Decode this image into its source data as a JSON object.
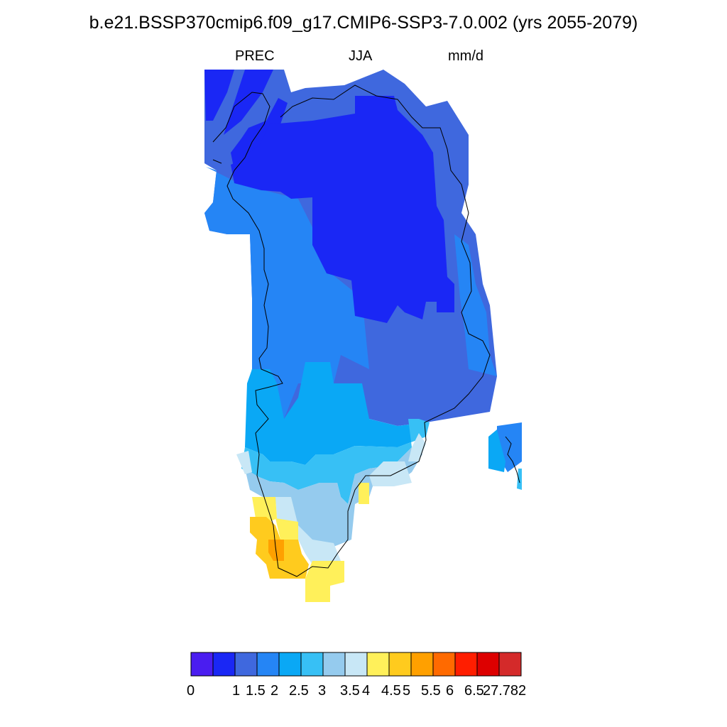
{
  "header": {
    "title": "b.e21.BSSP370cmip6.f09_g17.CMIP6-SSP3-7.0.002 (yrs 2055-2079)",
    "variable": "PREC",
    "season": "JJA",
    "units": "mm/d"
  },
  "colorbar": {
    "colors": [
      "#4a1df0",
      "#1a27f5",
      "#3f68de",
      "#2585f5",
      "#0aa8f5",
      "#37c0f5",
      "#95cbee",
      "#c8e7f6",
      "#fff05a",
      "#ffcb1e",
      "#ffa000",
      "#ff6a00",
      "#ff1e00",
      "#dd0000",
      "#d42a2a"
    ],
    "labels": [
      "0",
      "1",
      "1.5",
      "2",
      "2.5",
      "3",
      "3.5",
      "4",
      "4.5",
      "5",
      "5.5",
      "6",
      "6.5",
      "27.782"
    ]
  },
  "map_fill_colors": {
    "lt1": "#1a27f5",
    "r1_1_5": "#3f68de",
    "r1_5_2": "#2585f5",
    "r2_2_5": "#0aa8f5",
    "r2_5_3": "#37c0f5",
    "r3_3_5": "#95cbee",
    "r3_5_4": "#c8e7f6",
    "r4_4_5": "#fff05a",
    "r4_5_5": "#ffcb1e",
    "r5_5_5": "#ffa000"
  }
}
